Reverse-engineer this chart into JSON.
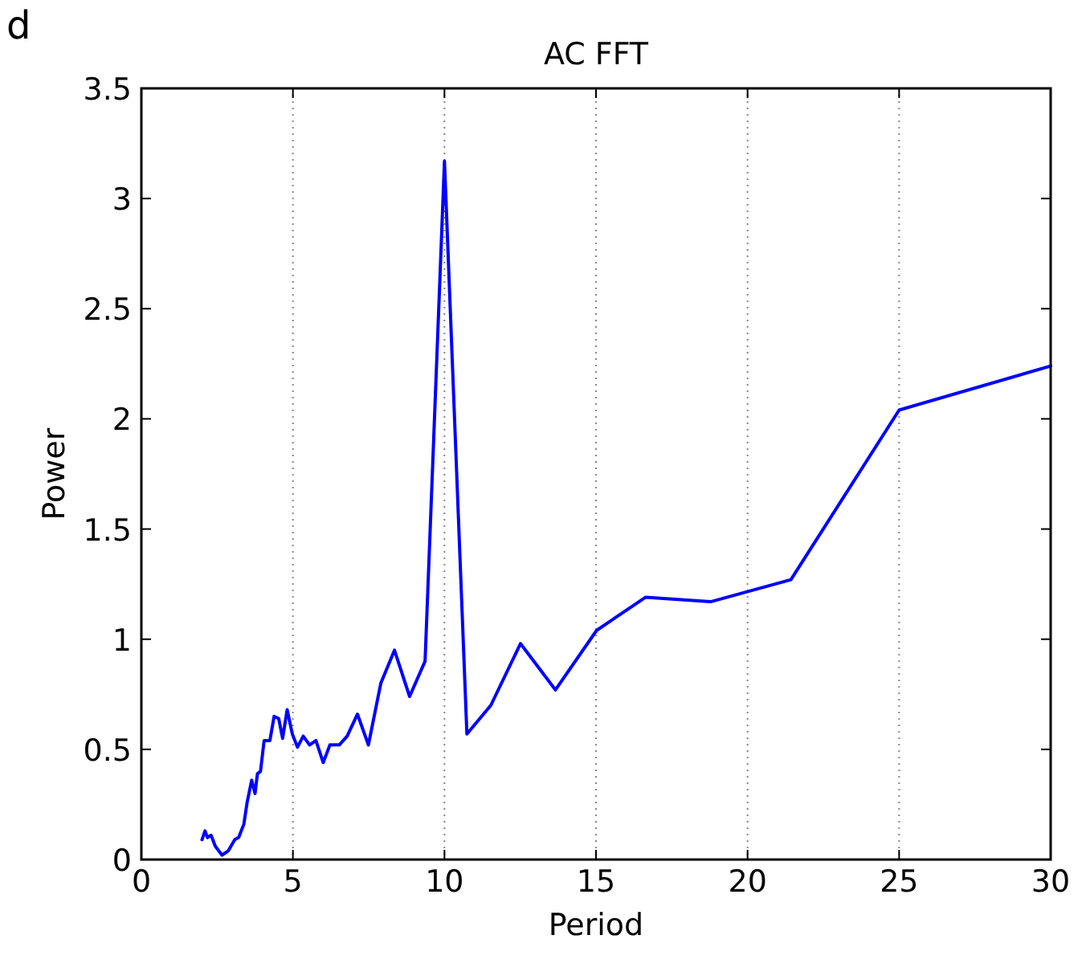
{
  "chart_data": {
    "type": "line",
    "title": "AC FFT",
    "xlabel": "Period",
    "ylabel": "Power",
    "annotations": [
      "d"
    ],
    "xlim": [
      0,
      30
    ],
    "ylim": [
      0,
      3.5
    ],
    "xticks": [
      0,
      5,
      10,
      15,
      20,
      25,
      30
    ],
    "yticks": [
      0,
      0.5,
      1,
      1.5,
      2,
      2.5,
      3,
      3.5
    ],
    "grid": "x",
    "marker": "none",
    "line_style": "solid",
    "series": [
      {
        "color": "#0000ff",
        "x": [
          2.0,
          2.1,
          2.18,
          2.3,
          2.44,
          2.66,
          2.87,
          3.08,
          3.21,
          3.38,
          3.49,
          3.64,
          3.75,
          3.83,
          3.93,
          4.05,
          4.24,
          4.38,
          4.53,
          4.66,
          4.81,
          4.98,
          5.15,
          5.34,
          5.55,
          5.76,
          6.0,
          6.22,
          6.53,
          6.79,
          7.13,
          7.49,
          7.9,
          8.35,
          8.85,
          9.36,
          10.0,
          10.74,
          11.53,
          12.51,
          13.66,
          15.02,
          16.63,
          18.78,
          21.43,
          25.0,
          30.0
        ],
        "values": [
          0.09,
          0.13,
          0.1,
          0.11,
          0.06,
          0.02,
          0.04,
          0.09,
          0.1,
          0.16,
          0.26,
          0.36,
          0.3,
          0.39,
          0.4,
          0.54,
          0.54,
          0.65,
          0.64,
          0.55,
          0.68,
          0.57,
          0.51,
          0.56,
          0.52,
          0.54,
          0.44,
          0.52,
          0.52,
          0.56,
          0.66,
          0.52,
          0.8,
          0.95,
          0.74,
          0.9,
          3.17,
          0.57,
          0.7,
          0.98,
          0.77,
          1.04,
          1.19,
          1.17,
          1.27,
          2.04,
          2.24
        ]
      }
    ]
  }
}
